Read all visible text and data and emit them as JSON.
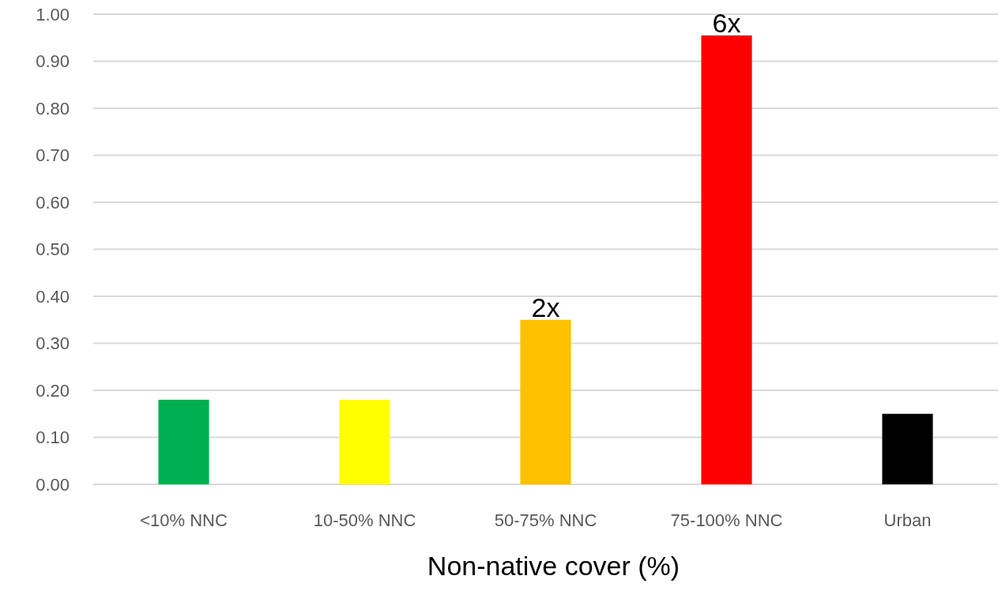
{
  "chart_data": {
    "type": "bar",
    "xlabel": "Non-native cover (%)",
    "categories": [
      "<10% NNC",
      "10-50% NNC",
      "50-75% NNC",
      "75-100% NNC",
      "Urban"
    ],
    "values": [
      0.18,
      0.18,
      0.35,
      0.955,
      0.15
    ],
    "colors": [
      "#00b050",
      "#ffff00",
      "#ffc000",
      "#ff0000",
      "#000000"
    ],
    "ylim": [
      0,
      1
    ],
    "yticks": [
      {
        "value": 0,
        "label": "0.00"
      },
      {
        "value": 0.1,
        "label": "0.10"
      },
      {
        "value": 0.2,
        "label": "0.20"
      },
      {
        "value": 0.3,
        "label": "0.30"
      },
      {
        "value": 0.4,
        "label": "0.40"
      },
      {
        "value": 0.5,
        "label": "0.50"
      },
      {
        "value": 0.6,
        "label": "0.60"
      },
      {
        "value": 0.7,
        "label": "0.70"
      },
      {
        "value": 0.8,
        "label": "0.80"
      },
      {
        "value": 0.9,
        "label": "0.90"
      },
      {
        "value": 1,
        "label": "1.00"
      }
    ],
    "grid": "y",
    "annotations": [
      {
        "text": "2x",
        "x": "50-75% NNC",
        "y": 0.35
      },
      {
        "text": "6x",
        "x": "75-100% NNC",
        "y": 0.955
      }
    ]
  }
}
